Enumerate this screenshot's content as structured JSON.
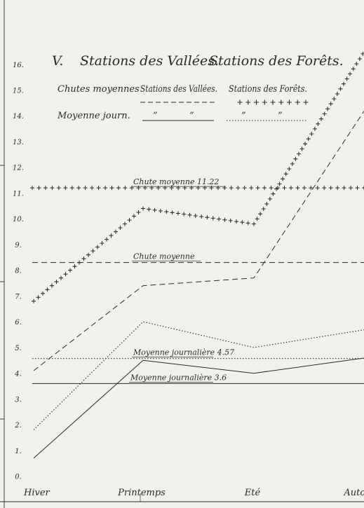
{
  "chart_data": {
    "type": "line",
    "title_parts": [
      "V.",
      "Stations des Vallées.",
      "Stations des Forêts."
    ],
    "categories": [
      "Hiver",
      "Printemps",
      "Eté",
      "Automne"
    ],
    "y_ticks": [
      "0.",
      "1.",
      "2.",
      "3.",
      "4.",
      "5.",
      "6.",
      "7.",
      "8.",
      "9.",
      "10.",
      "11.",
      "12.",
      "13.",
      "14.",
      "15.",
      "16."
    ],
    "ylim": [
      -0.5,
      17.3
    ],
    "grid": false,
    "legend": {
      "row1_label": "Chutes moyennes",
      "row1_valley": "Stations des Vallées.",
      "row1_forest": "Stations des Forêts.",
      "row2_label": "Moyenne journ.",
      "ditto": "”"
    },
    "series": [
      {
        "name": "Chutes moyennes — Stations des Vallées",
        "style": "dashed",
        "values": [
          4.1,
          7.4,
          7.7,
          14.3
        ]
      },
      {
        "name": "Chutes moyennes — Stations des Forêts",
        "style": "crosses",
        "values": [
          6.8,
          10.4,
          9.8,
          16.6
        ]
      },
      {
        "name": "Moyenne journalière — Stations des Vallées",
        "style": "solid",
        "values": [
          0.7,
          4.5,
          4.0,
          4.6
        ]
      },
      {
        "name": "Moyenne journalière — Stations des Forêts",
        "style": "dotted",
        "values": [
          1.8,
          6.0,
          5.0,
          5.7
        ]
      }
    ],
    "reference_lines": [
      {
        "label": "Chute moyenne 11.22",
        "value": 11.2,
        "style": "crosses"
      },
      {
        "label": "Chute moyenne",
        "value": 8.3,
        "style": "dashed"
      },
      {
        "label": "Moyenne journalière 4.57",
        "value": 4.57,
        "style": "dotted"
      },
      {
        "label": "Moyenne journalière 3.6",
        "value": 3.6,
        "style": "solid"
      }
    ],
    "colors": {
      "ink": "#2a2a2a",
      "paper": "#f1f0ea"
    }
  }
}
